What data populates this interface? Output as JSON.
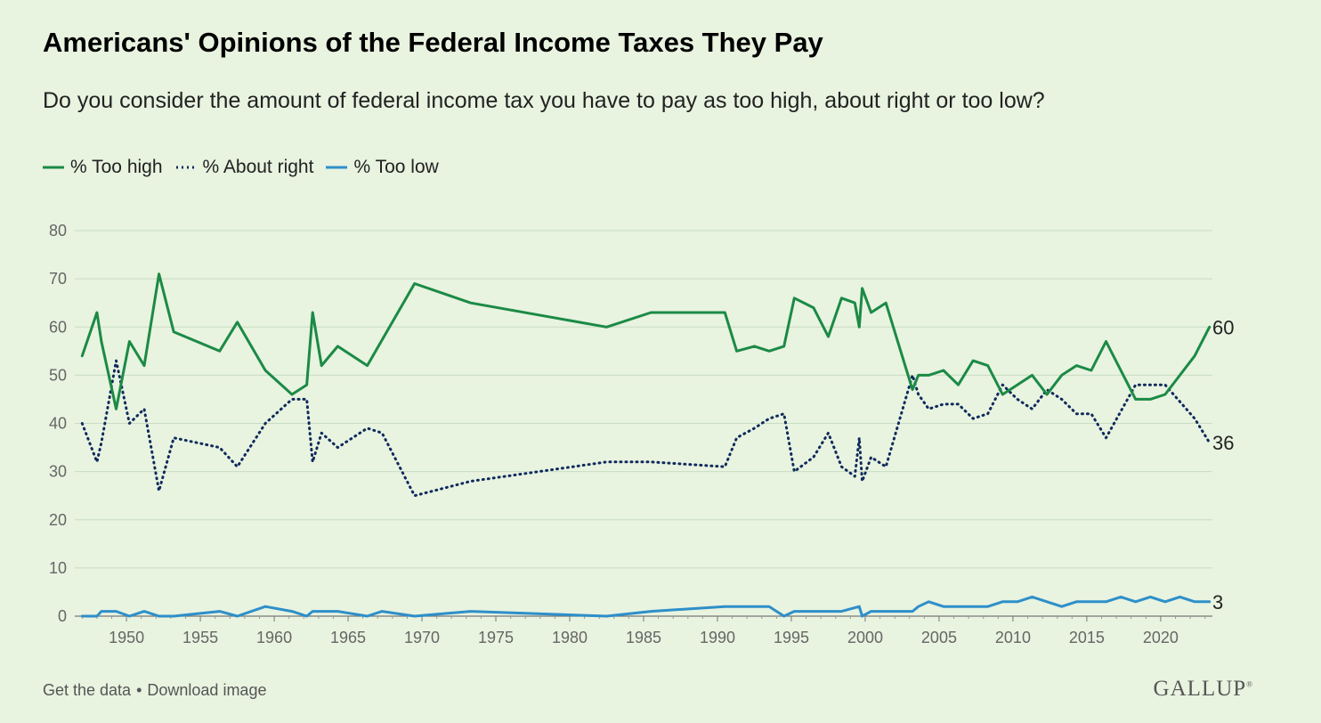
{
  "header": {
    "title": "Americans' Opinions of the Federal Income Taxes They Pay",
    "subtitle": "Do you consider the amount of federal income tax you have to pay as too high, about right or too low?"
  },
  "footer": {
    "get_data": "Get the data",
    "separator": "•",
    "download": "Download image",
    "brand": "GALLUP",
    "brand_mark": "®"
  },
  "colors": {
    "too_high": "#1b8a45",
    "about_right": "#0f2a5c",
    "too_low": "#2e8fc9",
    "grid": "#c9dcc2"
  },
  "chart_data": {
    "type": "line",
    "title": "Americans' Opinions of the Federal Income Taxes They Pay",
    "subtitle": "Do you consider the amount of federal income tax you have to pay as too high, about right or too low?",
    "xlabel": "",
    "ylabel": "",
    "xlim": [
      1946.5,
      2023.5
    ],
    "ylim": [
      0,
      80
    ],
    "y_ticks": [
      0,
      10,
      20,
      30,
      40,
      50,
      60,
      70,
      80
    ],
    "x_ticks": [
      1950,
      1955,
      1960,
      1965,
      1970,
      1975,
      1980,
      1985,
      1990,
      1995,
      2000,
      2005,
      2010,
      2015,
      2020
    ],
    "grid": true,
    "legend_position": "top-left",
    "series": [
      {
        "name": "% Too high",
        "style": "solid",
        "end_label": "60",
        "points": [
          [
            1947,
            54
          ],
          [
            1948,
            63
          ],
          [
            1948.3,
            57
          ],
          [
            1949.3,
            43
          ],
          [
            1950.2,
            57
          ],
          [
            1951.2,
            52
          ],
          [
            1952.2,
            71
          ],
          [
            1953.2,
            59
          ],
          [
            1956.3,
            55
          ],
          [
            1957.5,
            61
          ],
          [
            1959.4,
            51
          ],
          [
            1961.2,
            46
          ],
          [
            1962.2,
            48
          ],
          [
            1962.6,
            63
          ],
          [
            1963.2,
            52
          ],
          [
            1964.3,
            56
          ],
          [
            1966.3,
            52
          ],
          [
            1969.5,
            69
          ],
          [
            1973.3,
            65
          ],
          [
            1982.5,
            60
          ],
          [
            1985.5,
            63
          ],
          [
            1990.5,
            63
          ],
          [
            1991.3,
            55
          ],
          [
            1992.5,
            56
          ],
          [
            1993.5,
            55
          ],
          [
            1994.5,
            56
          ],
          [
            1995.2,
            66
          ],
          [
            1996.5,
            64
          ],
          [
            1997.5,
            58
          ],
          [
            1998.4,
            66
          ],
          [
            1999.3,
            65
          ],
          [
            1999.6,
            60
          ],
          [
            1999.8,
            68
          ],
          [
            2000.4,
            63
          ],
          [
            2001.4,
            65
          ],
          [
            2003.2,
            47
          ],
          [
            2003.6,
            50
          ],
          [
            2004.3,
            50
          ],
          [
            2005.3,
            51
          ],
          [
            2006.3,
            48
          ],
          [
            2007.3,
            53
          ],
          [
            2008.3,
            52
          ],
          [
            2009.3,
            46
          ],
          [
            2010.3,
            48
          ],
          [
            2011.3,
            50
          ],
          [
            2012.3,
            46
          ],
          [
            2013.3,
            50
          ],
          [
            2014.3,
            52
          ],
          [
            2015.3,
            51
          ],
          [
            2016.3,
            57
          ],
          [
            2018.3,
            45
          ],
          [
            2019.3,
            45
          ],
          [
            2020.3,
            46
          ],
          [
            2022.3,
            54
          ],
          [
            2023.3,
            60
          ]
        ]
      },
      {
        "name": "% About right",
        "style": "dotted",
        "end_label": "36",
        "points": [
          [
            1947,
            40
          ],
          [
            1948,
            32
          ],
          [
            1948.3,
            36
          ],
          [
            1949.3,
            53
          ],
          [
            1950.2,
            40
          ],
          [
            1951.2,
            43
          ],
          [
            1952.2,
            26
          ],
          [
            1953.2,
            37
          ],
          [
            1956.3,
            35
          ],
          [
            1957.5,
            31
          ],
          [
            1959.4,
            40
          ],
          [
            1961.2,
            45
          ],
          [
            1962.2,
            45
          ],
          [
            1962.6,
            32
          ],
          [
            1963.2,
            38
          ],
          [
            1964.3,
            35
          ],
          [
            1966.3,
            39
          ],
          [
            1967.3,
            38
          ],
          [
            1969.5,
            25
          ],
          [
            1973.3,
            28
          ],
          [
            1982.5,
            32
          ],
          [
            1985.5,
            32
          ],
          [
            1990.5,
            31
          ],
          [
            1991.3,
            37
          ],
          [
            1992.5,
            39
          ],
          [
            1993.5,
            41
          ],
          [
            1994.5,
            42
          ],
          [
            1995.2,
            30
          ],
          [
            1996.5,
            33
          ],
          [
            1997.5,
            38
          ],
          [
            1998.4,
            31
          ],
          [
            1999.3,
            29
          ],
          [
            1999.6,
            37
          ],
          [
            1999.8,
            28
          ],
          [
            2000.4,
            33
          ],
          [
            2001.4,
            31
          ],
          [
            2003.2,
            50
          ],
          [
            2003.6,
            46
          ],
          [
            2004.3,
            43
          ],
          [
            2005.3,
            44
          ],
          [
            2006.3,
            44
          ],
          [
            2007.3,
            41
          ],
          [
            2008.3,
            42
          ],
          [
            2009.3,
            48
          ],
          [
            2010.3,
            45
          ],
          [
            2011.3,
            43
          ],
          [
            2012.3,
            47
          ],
          [
            2013.3,
            45
          ],
          [
            2014.3,
            42
          ],
          [
            2015.3,
            42
          ],
          [
            2016.3,
            37
          ],
          [
            2018.3,
            48
          ],
          [
            2019.3,
            48
          ],
          [
            2020.3,
            48
          ],
          [
            2022.3,
            41
          ],
          [
            2023.3,
            36
          ]
        ]
      },
      {
        "name": "% Too low",
        "style": "solid",
        "end_label": "3",
        "points": [
          [
            1947,
            0
          ],
          [
            1948,
            0
          ],
          [
            1948.3,
            1
          ],
          [
            1949.3,
            1
          ],
          [
            1950.2,
            0
          ],
          [
            1951.2,
            1
          ],
          [
            1952.2,
            0
          ],
          [
            1953.2,
            0
          ],
          [
            1956.3,
            1
          ],
          [
            1957.5,
            0
          ],
          [
            1959.4,
            2
          ],
          [
            1961.2,
            1
          ],
          [
            1962.2,
            0
          ],
          [
            1962.6,
            1
          ],
          [
            1964.3,
            1
          ],
          [
            1966.3,
            0
          ],
          [
            1967.3,
            1
          ],
          [
            1969.5,
            0
          ],
          [
            1973.3,
            1
          ],
          [
            1982.5,
            0
          ],
          [
            1985.5,
            1
          ],
          [
            1990.5,
            2
          ],
          [
            1993.5,
            2
          ],
          [
            1994.5,
            0
          ],
          [
            1995.2,
            1
          ],
          [
            1998.4,
            1
          ],
          [
            1999.6,
            2
          ],
          [
            1999.8,
            0
          ],
          [
            2000.4,
            1
          ],
          [
            2003.2,
            1
          ],
          [
            2003.6,
            2
          ],
          [
            2004.3,
            3
          ],
          [
            2005.3,
            2
          ],
          [
            2008.3,
            2
          ],
          [
            2009.3,
            3
          ],
          [
            2010.3,
            3
          ],
          [
            2011.3,
            4
          ],
          [
            2013.3,
            2
          ],
          [
            2014.3,
            3
          ],
          [
            2016.3,
            3
          ],
          [
            2017.3,
            4
          ],
          [
            2018.3,
            3
          ],
          [
            2019.3,
            4
          ],
          [
            2020.3,
            3
          ],
          [
            2021.3,
            4
          ],
          [
            2022.3,
            3
          ],
          [
            2023.3,
            3
          ]
        ]
      }
    ]
  }
}
